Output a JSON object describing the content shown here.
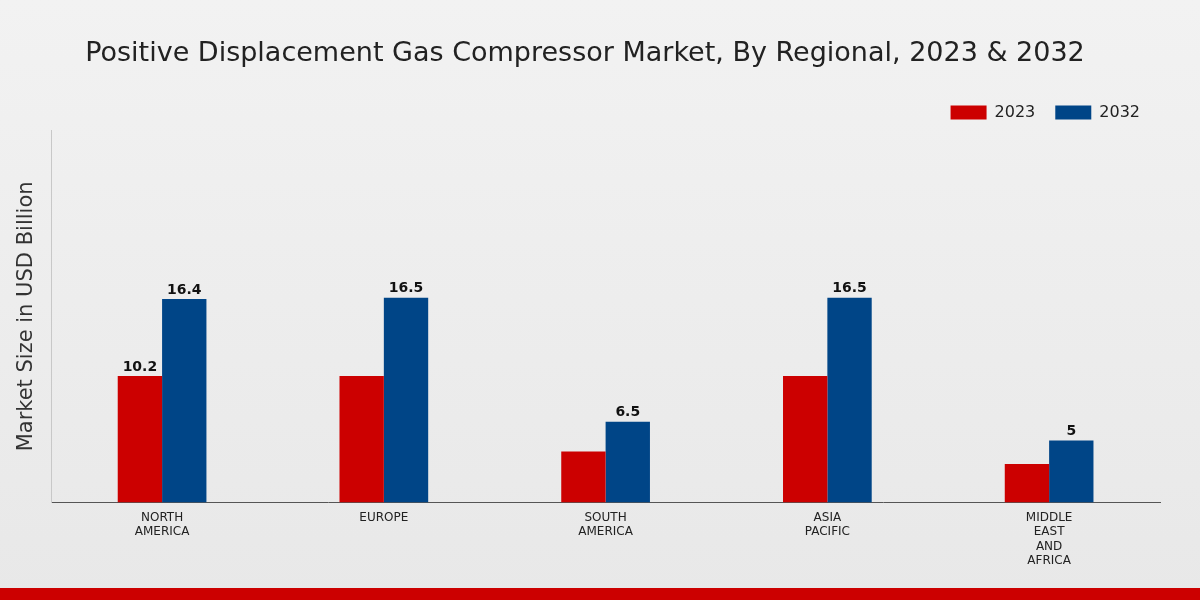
{
  "chart_data": {
    "type": "bar",
    "title": "Positive Displacement Gas Compressor Market, By Regional, 2023 & 2032",
    "y_label": "Market Size in USD Billion",
    "categories": [
      "NORTH AMERICA",
      "EUROPE",
      "SOUTH AMERICA",
      "ASIA PACIFIC",
      "MIDDLE EAST AND AFRICA"
    ],
    "series": [
      {
        "name": "2023",
        "color": "#cc0000",
        "values": [
          10.2,
          10.2,
          4.1,
          10.2,
          3.1
        ],
        "value_labels": [
          "10.2",
          null,
          null,
          null,
          null
        ]
      },
      {
        "name": "2032",
        "color": "#004587",
        "values": [
          16.4,
          16.5,
          6.5,
          16.5,
          5.0
        ]
      }
    ],
    "ylim": [
      0,
      30
    ],
    "grid": false,
    "legend": "top-right",
    "data_labels": true,
    "tick_labels": "x"
  }
}
